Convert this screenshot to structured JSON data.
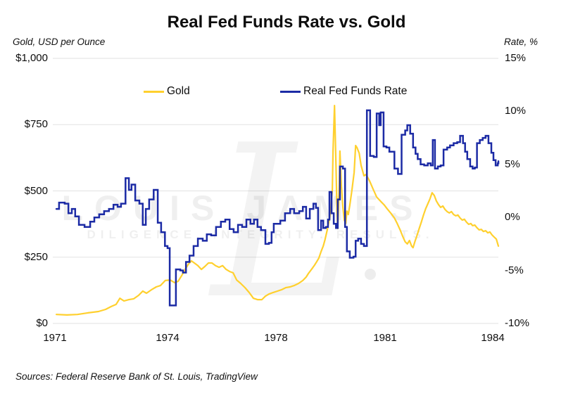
{
  "title": "Real Fed Funds Rate vs. Gold",
  "left_axis": {
    "label": "Gold, USD per Ounce",
    "tick_labels": [
      "$1,000",
      "$750",
      "$500",
      "$250",
      "$0"
    ],
    "tick_values": [
      1000,
      750,
      500,
      250,
      0
    ],
    "min": 0,
    "max": 1000
  },
  "right_axis": {
    "label": "Rate, %",
    "tick_labels": [
      "15%",
      "10%",
      "5%",
      "0%",
      "-5%",
      "-10%"
    ],
    "tick_values": [
      15,
      10,
      5,
      0,
      -5,
      -10
    ],
    "min": -10,
    "max": 15
  },
  "x_axis": {
    "tick_labels": [
      "1971",
      "1974",
      "1978",
      "1981",
      "1984"
    ],
    "tick_years": [
      1971,
      1974,
      1978,
      1981,
      1984
    ]
  },
  "legend": [
    {
      "label": "Gold",
      "color": "#FFD02E"
    },
    {
      "label": "Real Fed Funds Rate",
      "color": "#1C2BA5"
    }
  ],
  "watermark": {
    "line1": "LOUIS JAMES",
    "line2": "DILIGENCE. INTEGRITY. RESULTS.",
    "monogram": "L"
  },
  "sources": "Sources: Federal Reserve Bank of St. Louis, TradingView",
  "colors": {
    "gridline": "#e2e2e2",
    "gold": "#FFD02E",
    "rate": "#1C2BA5"
  },
  "chart_data": {
    "type": "line",
    "title": "Real Fed Funds Rate vs. Gold",
    "x_range": [
      1970.95,
      1984.2
    ],
    "grid": "horizontal-only",
    "legend_position": "top-center",
    "series": [
      {
        "name": "Gold",
        "axis": "left",
        "units": "USD per ounce",
        "ylim": [
          0,
          1000
        ],
        "style": "smooth",
        "points": [
          [
            1971.04,
            34
          ],
          [
            1971.32,
            32
          ],
          [
            1971.6,
            34
          ],
          [
            1971.88,
            40
          ],
          [
            1972.16,
            45
          ],
          [
            1972.35,
            53
          ],
          [
            1972.5,
            64
          ],
          [
            1972.63,
            72
          ],
          [
            1972.73,
            95
          ],
          [
            1972.84,
            85
          ],
          [
            1972.97,
            90
          ],
          [
            1973.1,
            93
          ],
          [
            1973.23,
            106
          ],
          [
            1973.34,
            122
          ],
          [
            1973.44,
            114
          ],
          [
            1973.57,
            127
          ],
          [
            1973.7,
            138
          ],
          [
            1973.81,
            143
          ],
          [
            1973.94,
            162
          ],
          [
            1974.1,
            164
          ],
          [
            1974.26,
            154
          ],
          [
            1974.39,
            159
          ],
          [
            1974.52,
            180
          ],
          [
            1974.65,
            204
          ],
          [
            1974.78,
            225
          ],
          [
            1974.88,
            236
          ],
          [
            1974.99,
            228
          ],
          [
            1975.12,
            218
          ],
          [
            1975.25,
            204
          ],
          [
            1975.38,
            215
          ],
          [
            1975.51,
            228
          ],
          [
            1975.64,
            228
          ],
          [
            1975.77,
            218
          ],
          [
            1975.9,
            212
          ],
          [
            1976.03,
            218
          ],
          [
            1976.16,
            204
          ],
          [
            1976.29,
            196
          ],
          [
            1976.42,
            191
          ],
          [
            1976.55,
            164
          ],
          [
            1976.7,
            151
          ],
          [
            1976.86,
            135
          ],
          [
            1977.01,
            117
          ],
          [
            1977.17,
            95
          ],
          [
            1977.32,
            90
          ],
          [
            1977.48,
            90
          ],
          [
            1977.61,
            103
          ],
          [
            1977.74,
            111
          ],
          [
            1977.9,
            117
          ],
          [
            1978.04,
            122
          ],
          [
            1978.15,
            127
          ],
          [
            1978.27,
            135
          ],
          [
            1978.39,
            138
          ],
          [
            1978.5,
            143
          ],
          [
            1978.62,
            151
          ],
          [
            1978.74,
            162
          ],
          [
            1978.83,
            175
          ],
          [
            1978.89,
            188
          ],
          [
            1978.95,
            199
          ],
          [
            1979.01,
            210
          ],
          [
            1979.06,
            220
          ],
          [
            1979.12,
            233
          ],
          [
            1979.18,
            247
          ],
          [
            1979.24,
            271
          ],
          [
            1979.3,
            292
          ],
          [
            1979.35,
            316
          ],
          [
            1979.41,
            353
          ],
          [
            1979.47,
            393
          ],
          [
            1979.51,
            432
          ],
          [
            1979.55,
            504
          ],
          [
            1979.57,
            650
          ],
          [
            1979.61,
            822
          ],
          [
            1979.65,
            597
          ],
          [
            1979.68,
            411
          ],
          [
            1979.7,
            358
          ],
          [
            1979.74,
            517
          ],
          [
            1979.76,
            650
          ],
          [
            1979.8,
            517
          ],
          [
            1979.84,
            438
          ],
          [
            1979.88,
            390
          ],
          [
            1979.92,
            377
          ],
          [
            1979.95,
            424
          ],
          [
            1979.99,
            411
          ],
          [
            1980.03,
            446
          ],
          [
            1980.09,
            504
          ],
          [
            1980.15,
            570
          ],
          [
            1980.19,
            671
          ],
          [
            1980.23,
            663
          ],
          [
            1980.29,
            642
          ],
          [
            1980.34,
            597
          ],
          [
            1980.42,
            557
          ],
          [
            1980.48,
            562
          ],
          [
            1980.58,
            536
          ],
          [
            1980.68,
            504
          ],
          [
            1980.77,
            477
          ],
          [
            1980.87,
            462
          ],
          [
            1980.97,
            448
          ],
          [
            1981.06,
            432
          ],
          [
            1981.16,
            416
          ],
          [
            1981.26,
            398
          ],
          [
            1981.34,
            377
          ],
          [
            1981.42,
            353
          ],
          [
            1981.5,
            326
          ],
          [
            1981.56,
            308
          ],
          [
            1981.62,
            300
          ],
          [
            1981.68,
            313
          ],
          [
            1981.74,
            292
          ],
          [
            1981.78,
            286
          ],
          [
            1981.83,
            308
          ],
          [
            1981.89,
            332
          ],
          [
            1981.95,
            358
          ],
          [
            1982.01,
            382
          ],
          [
            1982.07,
            409
          ],
          [
            1982.13,
            432
          ],
          [
            1982.19,
            451
          ],
          [
            1982.25,
            470
          ],
          [
            1982.31,
            493
          ],
          [
            1982.37,
            483
          ],
          [
            1982.43,
            462
          ],
          [
            1982.49,
            448
          ],
          [
            1982.55,
            438
          ],
          [
            1982.61,
            443
          ],
          [
            1982.67,
            430
          ],
          [
            1982.73,
            422
          ],
          [
            1982.79,
            417
          ],
          [
            1982.85,
            422
          ],
          [
            1982.91,
            411
          ],
          [
            1982.97,
            406
          ],
          [
            1983.03,
            409
          ],
          [
            1983.09,
            398
          ],
          [
            1983.15,
            390
          ],
          [
            1983.21,
            393
          ],
          [
            1983.27,
            382
          ],
          [
            1983.33,
            374
          ],
          [
            1983.39,
            377
          ],
          [
            1983.44,
            369
          ],
          [
            1983.5,
            371
          ],
          [
            1983.56,
            361
          ],
          [
            1983.62,
            353
          ],
          [
            1983.68,
            355
          ],
          [
            1983.74,
            347
          ],
          [
            1983.8,
            350
          ],
          [
            1983.86,
            342
          ],
          [
            1983.92,
            345
          ],
          [
            1983.98,
            334
          ],
          [
            1984.04,
            326
          ],
          [
            1984.1,
            318
          ],
          [
            1984.14,
            300
          ],
          [
            1984.18,
            292
          ]
        ]
      },
      {
        "name": "Real Fed Funds Rate",
        "axis": "right",
        "units": "percent",
        "ylim": [
          -10,
          15
        ],
        "style": "step",
        "points": [
          [
            1971.04,
            0.8
          ],
          [
            1971.11,
            1.4
          ],
          [
            1971.26,
            1.3
          ],
          [
            1971.36,
            0.4
          ],
          [
            1971.45,
            0.8
          ],
          [
            1971.54,
            0.1
          ],
          [
            1971.64,
            -0.7
          ],
          [
            1971.79,
            -0.9
          ],
          [
            1971.94,
            -0.4
          ],
          [
            1972.05,
            0.0
          ],
          [
            1972.18,
            0.3
          ],
          [
            1972.31,
            0.6
          ],
          [
            1972.44,
            0.8
          ],
          [
            1972.56,
            1.2
          ],
          [
            1972.67,
            1.0
          ],
          [
            1972.76,
            1.3
          ],
          [
            1972.88,
            3.7
          ],
          [
            1972.97,
            2.6
          ],
          [
            1973.04,
            3.1
          ],
          [
            1973.14,
            1.6
          ],
          [
            1973.25,
            1.3
          ],
          [
            1973.34,
            -0.7
          ],
          [
            1973.42,
            0.8
          ],
          [
            1973.51,
            1.7
          ],
          [
            1973.63,
            2.6
          ],
          [
            1973.74,
            -0.5
          ],
          [
            1973.83,
            -1.4
          ],
          [
            1973.93,
            -2.7
          ],
          [
            1974.0,
            -2.9
          ],
          [
            1974.08,
            -8.3
          ],
          [
            1974.31,
            -4.9
          ],
          [
            1974.47,
            -5.0
          ],
          [
            1974.57,
            -5.2
          ],
          [
            1974.68,
            -4.2
          ],
          [
            1974.81,
            -3.6
          ],
          [
            1974.96,
            -2.7
          ],
          [
            1975.12,
            -2.0
          ],
          [
            1975.3,
            -2.2
          ],
          [
            1975.45,
            -1.6
          ],
          [
            1975.61,
            -1.7
          ],
          [
            1975.79,
            -0.9
          ],
          [
            1975.97,
            -0.4
          ],
          [
            1976.13,
            -0.2
          ],
          [
            1976.29,
            -1.1
          ],
          [
            1976.44,
            -1.4
          ],
          [
            1976.6,
            -0.7
          ],
          [
            1976.75,
            -0.9
          ],
          [
            1976.91,
            -0.2
          ],
          [
            1977.06,
            -0.6
          ],
          [
            1977.19,
            -0.2
          ],
          [
            1977.32,
            -0.9
          ],
          [
            1977.45,
            -1.2
          ],
          [
            1977.61,
            -2.5
          ],
          [
            1977.74,
            -2.4
          ],
          [
            1977.84,
            -1.4
          ],
          [
            1977.92,
            -0.6
          ],
          [
            1978.12,
            -0.3
          ],
          [
            1978.25,
            0.4
          ],
          [
            1978.39,
            0.8
          ],
          [
            1978.5,
            0.4
          ],
          [
            1978.64,
            0.6
          ],
          [
            1978.74,
            1.0
          ],
          [
            1978.83,
            -0.1
          ],
          [
            1978.93,
            0.8
          ],
          [
            1979.03,
            1.3
          ],
          [
            1979.1,
            0.9
          ],
          [
            1979.16,
            -1.2
          ],
          [
            1979.24,
            -0.3
          ],
          [
            1979.3,
            -1.0
          ],
          [
            1979.37,
            -0.9
          ],
          [
            1979.43,
            -0.2
          ],
          [
            1979.47,
            2.4
          ],
          [
            1979.53,
            0.4
          ],
          [
            1979.59,
            -0.6
          ],
          [
            1979.65,
            -1.0
          ],
          [
            1979.7,
            1.7
          ],
          [
            1979.76,
            4.8
          ],
          [
            1979.84,
            4.6
          ],
          [
            1979.9,
            -0.9
          ],
          [
            1979.95,
            -3.2
          ],
          [
            1980.03,
            -3.8
          ],
          [
            1980.13,
            -3.7
          ],
          [
            1980.19,
            -2.2
          ],
          [
            1980.26,
            -2.0
          ],
          [
            1980.34,
            -2.5
          ],
          [
            1980.42,
            -2.7
          ],
          [
            1980.5,
            10.1
          ],
          [
            1980.59,
            5.8
          ],
          [
            1980.69,
            5.7
          ],
          [
            1980.77,
            9.8
          ],
          [
            1980.84,
            8.7
          ],
          [
            1980.88,
            9.9
          ],
          [
            1980.96,
            6.7
          ],
          [
            1981.04,
            6.6
          ],
          [
            1981.12,
            6.2
          ],
          [
            1981.26,
            4.6
          ],
          [
            1981.36,
            4.1
          ],
          [
            1981.46,
            7.8
          ],
          [
            1981.56,
            8.2
          ],
          [
            1981.62,
            8.7
          ],
          [
            1981.7,
            7.9
          ],
          [
            1981.78,
            6.6
          ],
          [
            1981.85,
            6.0
          ],
          [
            1981.91,
            5.5
          ],
          [
            1981.99,
            5.0
          ],
          [
            1982.09,
            4.9
          ],
          [
            1982.19,
            5.1
          ],
          [
            1982.27,
            4.9
          ],
          [
            1982.33,
            7.3
          ],
          [
            1982.39,
            4.6
          ],
          [
            1982.47,
            4.8
          ],
          [
            1982.55,
            4.9
          ],
          [
            1982.63,
            6.4
          ],
          [
            1982.73,
            6.6
          ],
          [
            1982.81,
            6.8
          ],
          [
            1982.91,
            7.0
          ],
          [
            1983.01,
            7.1
          ],
          [
            1983.09,
            7.7
          ],
          [
            1983.17,
            7.0
          ],
          [
            1983.23,
            6.2
          ],
          [
            1983.29,
            5.5
          ],
          [
            1983.37,
            4.8
          ],
          [
            1983.44,
            4.6
          ],
          [
            1983.5,
            4.7
          ],
          [
            1983.56,
            7.0
          ],
          [
            1983.64,
            7.3
          ],
          [
            1983.72,
            7.5
          ],
          [
            1983.8,
            7.7
          ],
          [
            1983.88,
            7.0
          ],
          [
            1983.96,
            6.1
          ],
          [
            1984.02,
            5.4
          ],
          [
            1984.08,
            4.9
          ],
          [
            1984.14,
            5.1
          ],
          [
            1984.18,
            5.3
          ]
        ]
      }
    ]
  }
}
